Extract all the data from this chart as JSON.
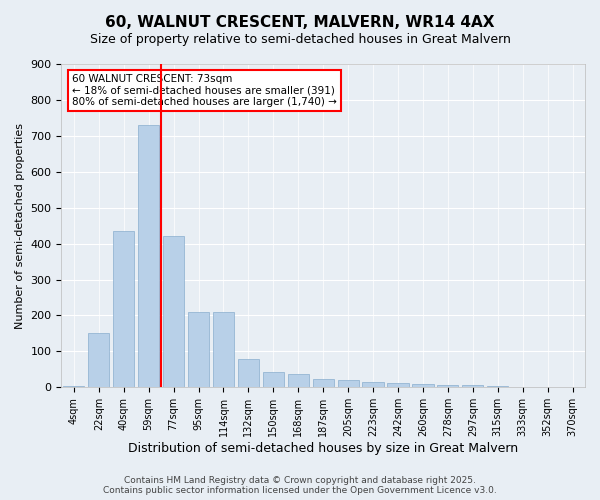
{
  "title": "60, WALNUT CRESCENT, MALVERN, WR14 4AX",
  "subtitle": "Size of property relative to semi-detached houses in Great Malvern",
  "xlabel": "Distribution of semi-detached houses by size in Great Malvern",
  "ylabel": "Number of semi-detached properties",
  "categories": [
    "4sqm",
    "22sqm",
    "40sqm",
    "59sqm",
    "77sqm",
    "95sqm",
    "114sqm",
    "132sqm",
    "150sqm",
    "168sqm",
    "187sqm",
    "205sqm",
    "223sqm",
    "242sqm",
    "260sqm",
    "278sqm",
    "297sqm",
    "315sqm",
    "333sqm",
    "352sqm",
    "370sqm"
  ],
  "values": [
    4,
    150,
    435,
    730,
    420,
    210,
    210,
    80,
    42,
    38,
    22,
    20,
    15,
    11,
    10,
    7,
    6,
    4,
    2,
    1,
    0
  ],
  "bar_color": "#b8d0e8",
  "bar_edge_color": "#8aaece",
  "vline_color": "red",
  "vline_pos": 3.5,
  "annotation_title": "60 WALNUT CRESCENT: 73sqm",
  "annotation_line1": "← 18% of semi-detached houses are smaller (391)",
  "annotation_line2": "80% of semi-detached houses are larger (1,740) →",
  "ylim": [
    0,
    900
  ],
  "yticks": [
    0,
    100,
    200,
    300,
    400,
    500,
    600,
    700,
    800,
    900
  ],
  "footer_line1": "Contains HM Land Registry data © Crown copyright and database right 2025.",
  "footer_line2": "Contains public sector information licensed under the Open Government Licence v3.0.",
  "bg_color": "#e8eef4",
  "plot_bg_color": "#e8eef4"
}
